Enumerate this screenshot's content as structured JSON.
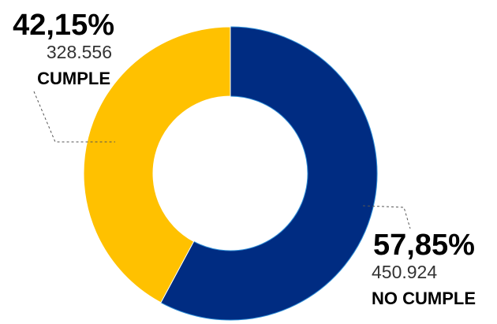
{
  "chart_data": {
    "type": "pie",
    "hole": true,
    "slices": [
      {
        "name": "NO CUMPLE",
        "percent_label": "57,85%",
        "value_label": "450.924",
        "value": 450924,
        "percent": 57.85,
        "color": "#002C82"
      },
      {
        "name": "CUMPLE",
        "percent_label": "42,15%",
        "value_label": "328.556",
        "value": 328556,
        "percent": 42.15,
        "color": "#FFC100"
      }
    ]
  }
}
